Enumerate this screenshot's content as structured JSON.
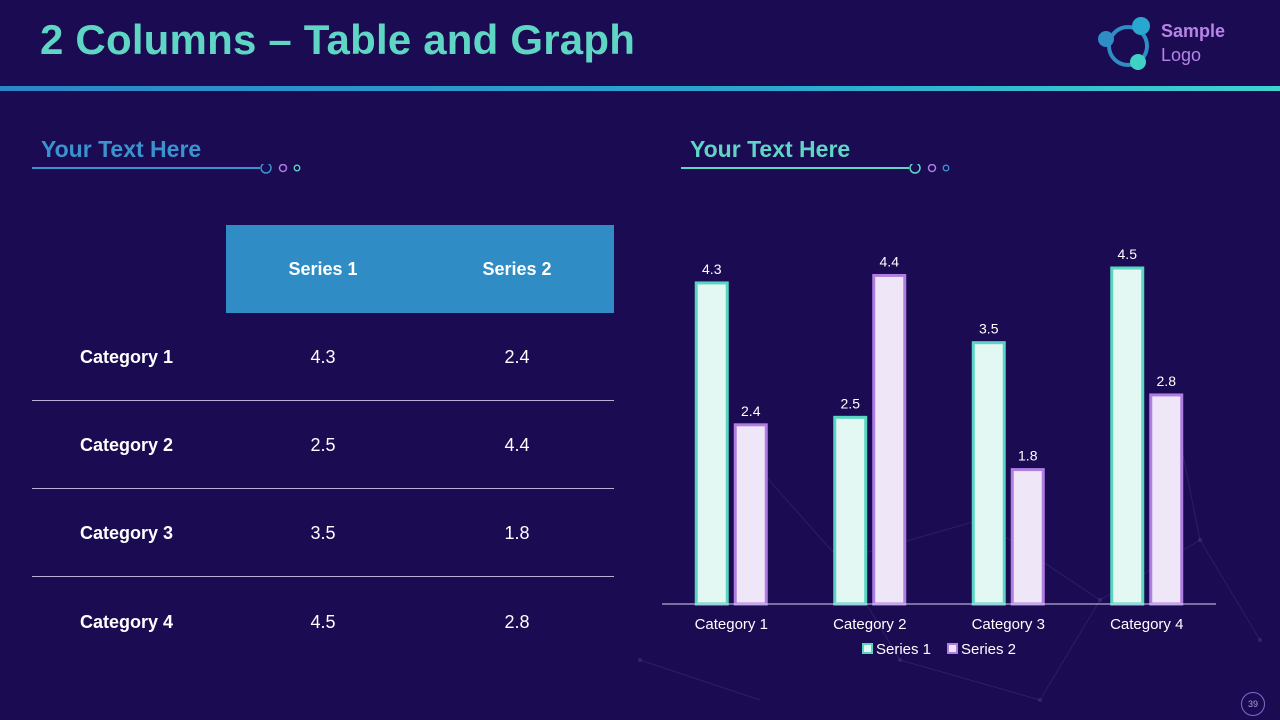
{
  "slide": {
    "title": "2 Columns – Table and Graph",
    "page_number": "39",
    "colors": {
      "background": "#1a0b52",
      "title": "#5fd6c4",
      "accent_blue": "#2f8cc4",
      "series1_fill": "#e3f7f3",
      "series1_stroke": "#59d6c2",
      "series2_fill": "#efe6f8",
      "series2_stroke": "#b07ee3"
    }
  },
  "logo": {
    "line1": "Sample",
    "line2": "Logo"
  },
  "left_section": {
    "heading": "Your Text Here"
  },
  "right_section": {
    "heading": "Your Text Here"
  },
  "table": {
    "headers": [
      "",
      "Series 1",
      "Series 2"
    ],
    "rows": [
      {
        "category": "Category 1",
        "s1": "4.3",
        "s2": "2.4"
      },
      {
        "category": "Category 2",
        "s1": "2.5",
        "s2": "4.4"
      },
      {
        "category": "Category 3",
        "s1": "3.5",
        "s2": "1.8"
      },
      {
        "category": "Category 4",
        "s1": "4.5",
        "s2": "2.8"
      }
    ]
  },
  "chart_data": {
    "type": "bar",
    "title": "",
    "xlabel": "",
    "ylabel": "",
    "categories": [
      "Category 1",
      "Category 2",
      "Category 3",
      "Category 4"
    ],
    "series": [
      {
        "name": "Series 1",
        "values": [
          4.3,
          2.5,
          3.5,
          4.5
        ]
      },
      {
        "name": "Series 2",
        "values": [
          2.4,
          4.4,
          1.8,
          2.8
        ]
      }
    ],
    "ylim": [
      0,
      4.5
    ],
    "grid": false,
    "data_labels": true,
    "legend": "bottom"
  }
}
